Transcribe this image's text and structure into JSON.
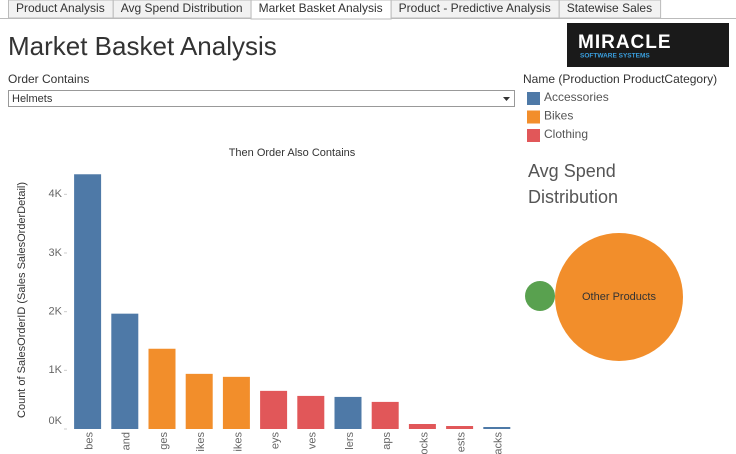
{
  "tabs": [
    "Product Analysis",
    "Avg Spend Distribution",
    "Market Basket Analysis",
    "Product - Predictive Analysis",
    "Statewise Sales"
  ],
  "active_tab": 2,
  "header": {
    "title": "Market Basket Analysis",
    "logo_main": "MIRACLE",
    "logo_sub": "SOFTWARE SYSTEMS"
  },
  "filter": {
    "label": "Order Contains",
    "value": "Helmets"
  },
  "legend": {
    "title": "Name (Production ProductCategory)",
    "items": [
      {
        "name": "Accessories",
        "color": "#4e79a7"
      },
      {
        "name": "Bikes",
        "color": "#f28e2b"
      },
      {
        "name": "Clothing",
        "color": "#e15759"
      }
    ]
  },
  "chart_data": [
    {
      "type": "bar",
      "title": "Then Order Also Contains",
      "y_label": "Count of SalesOrderID (Sales SalesOrderDetail)",
      "categories": [
        "bes",
        "and",
        "ges",
        "ikes",
        "ikes",
        "eys",
        "ves",
        "lers",
        "aps",
        "ocks",
        "ests",
        "acks"
      ],
      "values": [
        4342,
        1966,
        1368,
        940,
        889,
        650,
        564,
        547,
        462,
        85,
        51,
        34
      ],
      "colors": [
        "#4e79a7",
        "#4e79a7",
        "#f28e2b",
        "#f28e2b",
        "#f28e2b",
        "#e15759",
        "#e15759",
        "#4e79a7",
        "#e15759",
        "#e15759",
        "#e15759",
        "#4e79a7"
      ],
      "ylim": [
        0,
        4500
      ],
      "yticks": [
        {
          "value": 0,
          "label": "0K"
        },
        {
          "value": 1000,
          "label": "1K"
        },
        {
          "value": 2000,
          "label": "2K"
        },
        {
          "value": 3000,
          "label": "3K"
        },
        {
          "value": 4000,
          "label": "4K"
        }
      ],
      "grid": false
    },
    {
      "type": "bubble",
      "title": "Avg Spend Distribution",
      "categories": [
        null,
        "Other Products"
      ],
      "values": [
        225,
        4096
      ],
      "colors": [
        "#59a14f",
        "#f28e2b"
      ]
    }
  ]
}
